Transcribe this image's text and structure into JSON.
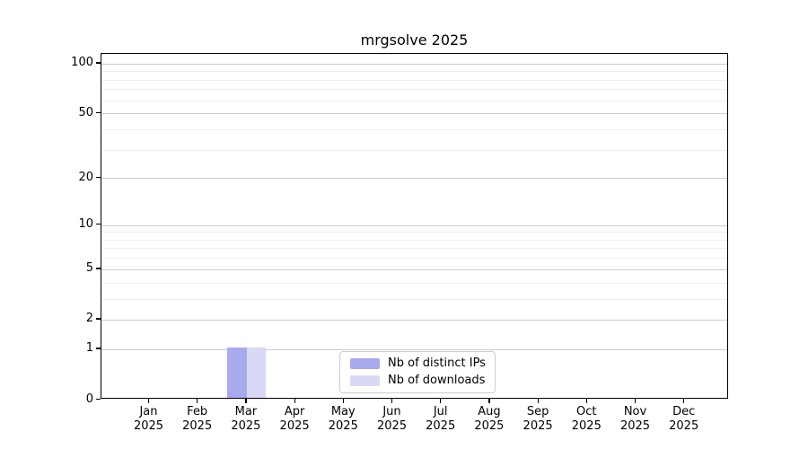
{
  "title": "mrgsolve 2025",
  "chart_data": {
    "type": "bar",
    "title": "mrgsolve 2025",
    "xlabel": "",
    "ylabel": "",
    "categories": [
      "Jan",
      "Feb",
      "Mar",
      "Apr",
      "May",
      "Jun",
      "Jul",
      "Aug",
      "Sep",
      "Oct",
      "Nov",
      "Dec"
    ],
    "x_year_label": "2025",
    "series": [
      {
        "name": "Nb of distinct IPs",
        "color": "#a9a9ee",
        "values": [
          0,
          0,
          1,
          0,
          0,
          0,
          0,
          0,
          0,
          0,
          0,
          0
        ]
      },
      {
        "name": "Nb of downloads",
        "color": "#d9d9f6",
        "values": [
          0,
          0,
          1,
          0,
          0,
          0,
          0,
          0,
          0,
          0,
          0,
          0
        ]
      }
    ],
    "y_scale": "log1p",
    "y_major_ticks": [
      0,
      1,
      2,
      5,
      10,
      20,
      50,
      100
    ],
    "y_minor_ticks": [
      3,
      4,
      6,
      7,
      8,
      9,
      30,
      40,
      60,
      70,
      80,
      90
    ],
    "ylim": [
      0,
      114.5
    ],
    "grid": true,
    "legend_position": "lower center",
    "colors": {
      "major_grid": "#cdcdcd",
      "minor_grid": "#ededed",
      "axis": "#000000",
      "legend_border": "#cccccc"
    }
  }
}
